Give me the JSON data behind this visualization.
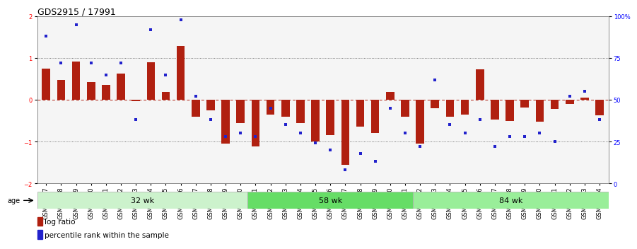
{
  "title": "GDS2915 / 17991",
  "samples": [
    "GSM97277",
    "GSM97278",
    "GSM97279",
    "GSM97280",
    "GSM97281",
    "GSM97282",
    "GSM97283",
    "GSM97284",
    "GSM97285",
    "GSM97286",
    "GSM97287",
    "GSM97288",
    "GSM97289",
    "GSM97290",
    "GSM97291",
    "GSM97292",
    "GSM97293",
    "GSM97294",
    "GSM97295",
    "GSM97296",
    "GSM97297",
    "GSM97298",
    "GSM97299",
    "GSM97300",
    "GSM97301",
    "GSM97302",
    "GSM97303",
    "GSM97304",
    "GSM97305",
    "GSM97306",
    "GSM97307",
    "GSM97308",
    "GSM97309",
    "GSM97310",
    "GSM97311",
    "GSM97312",
    "GSM97313",
    "GSM97314"
  ],
  "log_ratio": [
    0.75,
    0.48,
    0.92,
    0.42,
    0.35,
    0.62,
    -0.03,
    0.9,
    0.18,
    1.28,
    -0.4,
    -0.25,
    -1.05,
    -0.55,
    -1.12,
    -0.35,
    -0.4,
    -0.55,
    -1.0,
    -0.85,
    -1.55,
    -0.65,
    -0.8,
    0.18,
    -0.4,
    -1.05,
    -0.2,
    -0.4,
    -0.35,
    0.72,
    -0.48,
    -0.5,
    -0.18,
    -0.52,
    -0.22,
    -0.1,
    0.05,
    -0.38
  ],
  "percentile_rank": [
    88,
    72,
    95,
    72,
    65,
    72,
    38,
    92,
    65,
    98,
    52,
    38,
    28,
    30,
    28,
    45,
    35,
    30,
    24,
    20,
    8,
    18,
    13,
    45,
    30,
    22,
    62,
    35,
    30,
    38,
    22,
    28,
    28,
    30,
    25,
    52,
    55,
    38
  ],
  "groups": [
    {
      "label": "32 wk",
      "start": 0,
      "end": 14,
      "color": "#ccf2cc"
    },
    {
      "label": "58 wk",
      "start": 14,
      "end": 25,
      "color": "#66dd66"
    },
    {
      "label": "84 wk",
      "start": 25,
      "end": 38,
      "color": "#99ee99"
    }
  ],
  "bar_color": "#b02010",
  "dot_color": "#2222cc",
  "ylim": [
    -2,
    2
  ],
  "yticks_left": [
    -2,
    -1,
    0,
    1,
    2
  ],
  "right_ytick_vals": [
    -2,
    -1,
    0,
    1,
    2
  ],
  "right_yticklabels": [
    "0",
    "25",
    "50",
    "75",
    "100%"
  ],
  "bg_color": "#ffffff",
  "title_fontsize": 9,
  "tick_fontsize": 6,
  "label_fontsize": 8,
  "legend_fontsize": 7.5
}
